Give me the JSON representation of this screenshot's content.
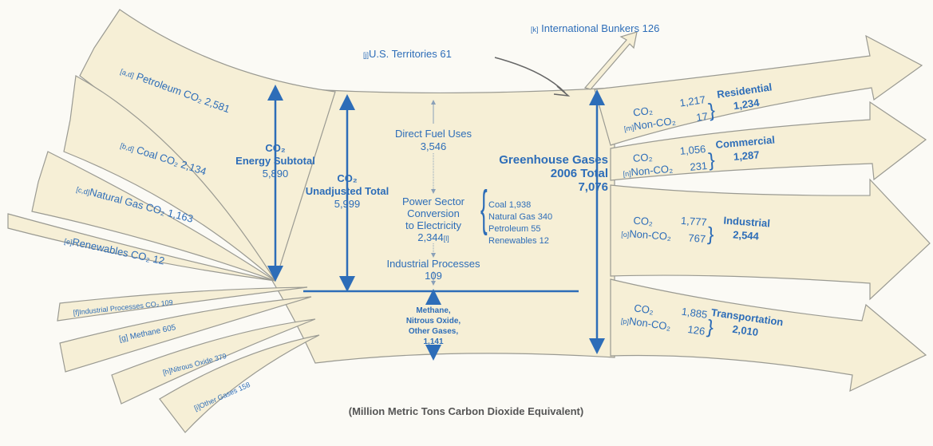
{
  "inputs": [
    {
      "tag": "[a,d]",
      "label": "Petroleum CO₂",
      "value": "2,581"
    },
    {
      "tag": "[b,d]",
      "label": "Coal CO₂",
      "value": "2,134"
    },
    {
      "tag": "[c,d]",
      "label": "Natural Gas CO₂",
      "value": "1,163"
    },
    {
      "tag": "[e]",
      "label": "Renewables CO₂",
      "value": "12"
    },
    {
      "tag": "[f]",
      "label": "Industrial Processes CO₂",
      "value": "109"
    },
    {
      "tag": "[g]",
      "label": "Methane",
      "value": "605"
    },
    {
      "tag": "[h]",
      "label": "Nitrous Oxide",
      "value": "379"
    },
    {
      "tag": "[i]",
      "label": "Other Gases",
      "value": "158"
    }
  ],
  "territories": {
    "tag": "[j]",
    "label": "U.S. Territories",
    "value": "61"
  },
  "bunkers": {
    "tag": "[k]",
    "label": "International Bunkers",
    "value": "126"
  },
  "energy_subtotal": {
    "lines": [
      "CO₂",
      "Energy Subtotal",
      "5,890"
    ]
  },
  "unadjusted_total": {
    "lines": [
      "CO₂",
      "Unadjusted Total",
      "5,999"
    ]
  },
  "direct_fuel": {
    "lines": [
      "Direct Fuel Uses",
      "3,546"
    ]
  },
  "power_sector": {
    "lines": [
      "Power Sector",
      "Conversion",
      "to Electricity",
      "2,344"
    ],
    "tag": "[l]",
    "breakdown": [
      {
        "label": "Coal",
        "value": "1,938"
      },
      {
        "label": "Natural Gas",
        "value": "340"
      },
      {
        "label": "Petroleum",
        "value": "55"
      },
      {
        "label": "Renewables",
        "value": "12"
      }
    ]
  },
  "industrial_processes": {
    "lines": [
      "Industrial Processes",
      "109"
    ]
  },
  "other_gases": {
    "lines": [
      "Methane,",
      "Nitrous Oxide,",
      "Other Gases,",
      "1,141"
    ]
  },
  "total": {
    "lines": [
      "Greenhouse Gases",
      "2006 Total",
      "7,076"
    ]
  },
  "outputs": [
    {
      "name": "Residential",
      "total": "1,234",
      "co2_label": "CO₂",
      "co2": "1,217",
      "tag": "[m]",
      "non_label": "Non-CO₂",
      "non": "17"
    },
    {
      "name": "Commercial",
      "total": "1,287",
      "co2_label": "CO₂",
      "co2": "1,056",
      "tag": "[n]",
      "non_label": "Non-CO₂",
      "non": "231"
    },
    {
      "name": "Industrial",
      "total": "2,544",
      "co2_label": "CO₂",
      "co2": "1,777",
      "tag": "[o]",
      "non_label": "Non-CO₂",
      "non": "767"
    },
    {
      "name": "Transportation",
      "total": "2,010",
      "co2_label": "CO₂",
      "co2": "1,885",
      "tag": "[p]",
      "non_label": "Non-CO₂",
      "non": "126"
    }
  ],
  "footer": "(Million Metric Tons Carbon Dioxide Equivalent)"
}
